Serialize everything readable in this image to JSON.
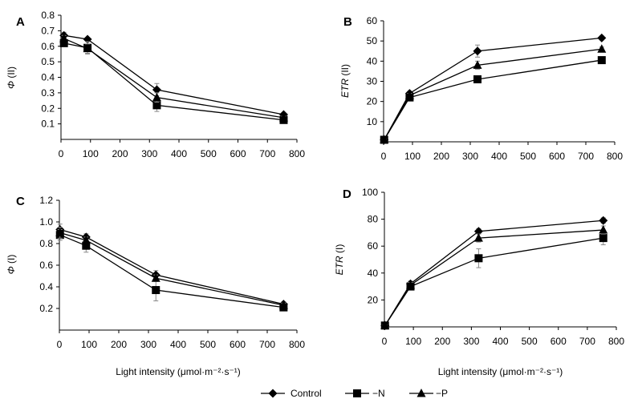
{
  "chart_data": [
    {
      "type": "line",
      "panel": "A",
      "ylabel_symbol": "Φ",
      "ylabel_suffix": "(II)",
      "xlabel": "",
      "xlim": [
        0,
        800
      ],
      "ylim": [
        0,
        0.8
      ],
      "xticks": [
        0,
        100,
        200,
        300,
        400,
        500,
        600,
        700,
        800
      ],
      "yticks": [
        0.1,
        0.2,
        0.3,
        0.4,
        0.5,
        0.6,
        0.7,
        0.8
      ],
      "y_decimals": 1,
      "series": [
        {
          "name": "Control",
          "marker": "diamond",
          "x": [
            10,
            90,
            325,
            755
          ],
          "y": [
            0.67,
            0.645,
            0.32,
            0.16
          ],
          "err": [
            0.02,
            0.01,
            0.04,
            0.01
          ]
        },
        {
          "name": "−N",
          "marker": "square",
          "x": [
            10,
            90,
            325,
            755
          ],
          "y": [
            0.62,
            0.59,
            0.22,
            0.125
          ],
          "err": [
            0.02,
            0.04,
            0.04,
            0.01
          ]
        },
        {
          "name": "−P",
          "marker": "triangle",
          "x": [
            10,
            90,
            325,
            755
          ],
          "y": [
            0.65,
            0.585,
            0.27,
            0.14
          ],
          "err": [
            0.02,
            0.03,
            0.03,
            0.01
          ]
        }
      ]
    },
    {
      "type": "line",
      "panel": "B",
      "ylabel_symbol": "ETR",
      "ylabel_suffix": "(II)",
      "xlabel": "",
      "xlim": [
        0,
        800
      ],
      "ylim": [
        0,
        60
      ],
      "xticks": [
        0,
        100,
        200,
        300,
        400,
        500,
        600,
        700,
        800
      ],
      "yticks": [
        10,
        20,
        30,
        40,
        50,
        60
      ],
      "y_decimals": 0,
      "series": [
        {
          "name": "Control",
          "marker": "diamond",
          "x": [
            2,
            90,
            325,
            755
          ],
          "y": [
            1,
            24,
            45,
            51.5
          ],
          "err": [
            0.3,
            1,
            3,
            1
          ]
        },
        {
          "name": "−N",
          "marker": "square",
          "x": [
            2,
            90,
            325,
            755
          ],
          "y": [
            1,
            22,
            31,
            40.5
          ],
          "err": [
            0.3,
            1,
            1,
            1
          ]
        },
        {
          "name": "−P",
          "marker": "triangle",
          "x": [
            2,
            90,
            325,
            755
          ],
          "y": [
            1,
            23,
            38,
            46
          ],
          "err": [
            0.3,
            1,
            2,
            1
          ]
        }
      ]
    },
    {
      "type": "line",
      "panel": "C",
      "ylabel_symbol": "Φ",
      "ylabel_suffix": "(I)",
      "xlabel": "Light intensity (μmol·m⁻²·s⁻¹)",
      "xlim": [
        0,
        800
      ],
      "ylim": [
        0,
        1.2
      ],
      "xticks": [
        0,
        100,
        200,
        300,
        400,
        500,
        600,
        700,
        800
      ],
      "yticks": [
        0.2,
        0.4,
        0.6,
        0.8,
        1.0,
        1.2
      ],
      "y_decimals": 1,
      "series": [
        {
          "name": "Control",
          "marker": "diamond",
          "x": [
            2,
            90,
            325,
            755
          ],
          "y": [
            0.93,
            0.86,
            0.51,
            0.24
          ],
          "err": [
            0.05,
            0.03,
            0.04,
            0.02
          ]
        },
        {
          "name": "−N",
          "marker": "square",
          "x": [
            2,
            90,
            325,
            755
          ],
          "y": [
            0.88,
            0.78,
            0.37,
            0.21
          ],
          "err": [
            0.05,
            0.06,
            0.1,
            0.02
          ]
        },
        {
          "name": "−P",
          "marker": "triangle",
          "x": [
            2,
            90,
            325,
            755
          ],
          "y": [
            0.9,
            0.83,
            0.48,
            0.23
          ],
          "err": [
            0.05,
            0.03,
            0.03,
            0.02
          ]
        }
      ]
    },
    {
      "type": "line",
      "panel": "D",
      "ylabel_symbol": "ETR",
      "ylabel_suffix": "(I)",
      "xlabel": "Light intensity (μmol·m⁻²·s⁻¹)",
      "xlim": [
        0,
        800
      ],
      "ylim": [
        0,
        100
      ],
      "xticks": [
        0,
        100,
        200,
        300,
        400,
        500,
        600,
        700,
        800
      ],
      "yticks": [
        20,
        40,
        60,
        80,
        100
      ],
      "y_decimals": 0,
      "series": [
        {
          "name": "Control",
          "marker": "diamond",
          "x": [
            2,
            90,
            325,
            755
          ],
          "y": [
            1,
            32,
            71,
            79
          ],
          "err": [
            0.5,
            2,
            2,
            2
          ]
        },
        {
          "name": "−N",
          "marker": "square",
          "x": [
            2,
            90,
            325,
            755
          ],
          "y": [
            1,
            30,
            51,
            66
          ],
          "err": [
            0.5,
            2,
            7,
            5
          ]
        },
        {
          "name": "−P",
          "marker": "triangle",
          "x": [
            2,
            90,
            325,
            755
          ],
          "y": [
            1,
            31,
            66,
            72
          ],
          "err": [
            0.5,
            2,
            3,
            3
          ]
        }
      ]
    }
  ],
  "legend": {
    "placement": "bottom-center",
    "items": [
      {
        "label": "Control",
        "marker": "diamond"
      },
      {
        "label": "−N",
        "marker": "square"
      },
      {
        "label": "−P",
        "marker": "triangle"
      }
    ]
  },
  "colors": {
    "line": "#000000",
    "error_bar": "#888888",
    "axis": "#000000"
  }
}
